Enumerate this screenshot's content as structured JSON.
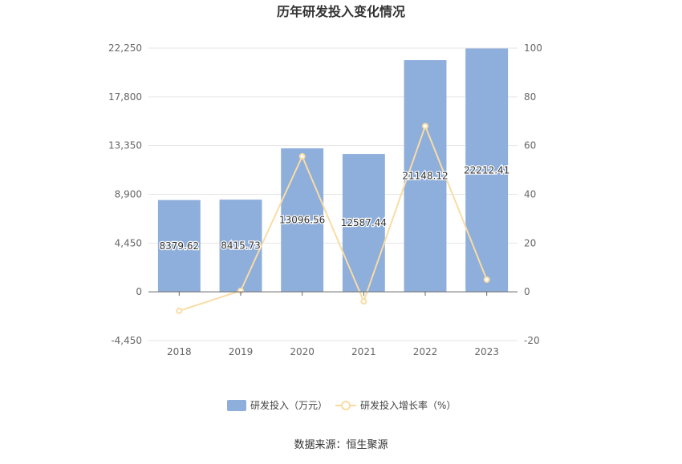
{
  "chart_data": {
    "type": "bar",
    "title": "历年研发投入变化情况",
    "categories": [
      "2018",
      "2019",
      "2020",
      "2021",
      "2022",
      "2023"
    ],
    "series": [
      {
        "name": "研发投入（万元）",
        "type": "bar",
        "axis": "left",
        "color": "#8eaedb",
        "values": [
          8379.62,
          8415.73,
          13096.56,
          12587.44,
          21148.12,
          22212.41
        ],
        "labels": [
          "8379.62",
          "8415.73",
          "13096.56",
          "12587.44",
          "21148.12",
          "22212.41"
        ]
      },
      {
        "name": "研发投入增长率（%）",
        "type": "line",
        "axis": "right",
        "color": "#f9dca4",
        "values": [
          -7.8,
          0.43,
          55.6,
          -3.9,
          68.0,
          5.0
        ]
      }
    ],
    "y_left": {
      "ylim": [
        -4450,
        22250
      ],
      "ticks": [
        "-4,450",
        "0",
        "4,450",
        "8,900",
        "13,350",
        "17,800",
        "22,250"
      ]
    },
    "y_right": {
      "ylim": [
        -20,
        100
      ],
      "ticks": [
        "-20",
        "0",
        "20",
        "40",
        "60",
        "80",
        "100"
      ]
    },
    "grid": true,
    "legend_position": "bottom"
  },
  "source": "数据来源：恒生聚源"
}
